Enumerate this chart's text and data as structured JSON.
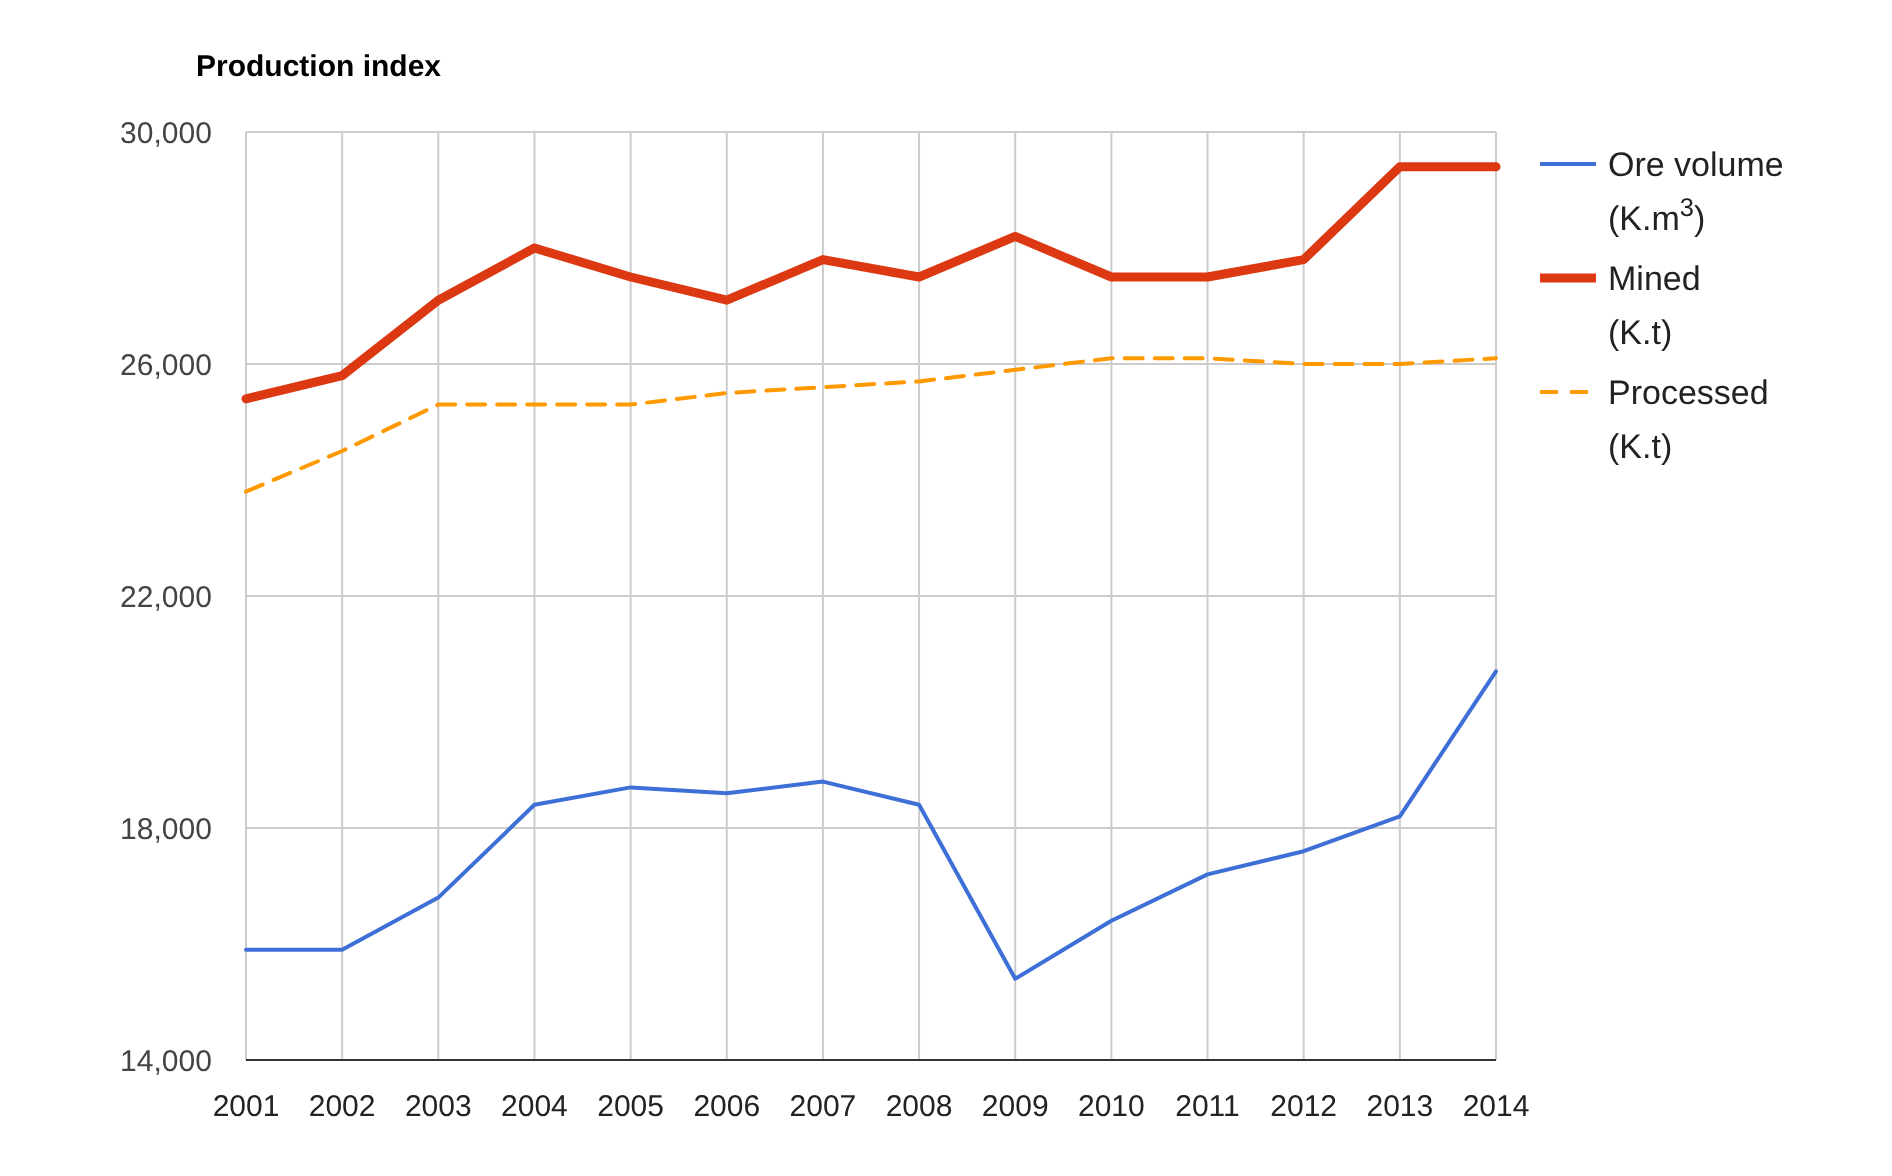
{
  "chart_data": {
    "type": "line",
    "title": "Production index",
    "x": [
      2001,
      2002,
      2003,
      2004,
      2005,
      2006,
      2007,
      2008,
      2009,
      2010,
      2011,
      2012,
      2013,
      2014
    ],
    "xlim": [
      2001,
      2014
    ],
    "xticks": [
      2001,
      2002,
      2003,
      2004,
      2005,
      2006,
      2007,
      2008,
      2009,
      2010,
      2011,
      2012,
      2013,
      2014
    ],
    "ylim": [
      14000,
      30000
    ],
    "yticks": [
      {
        "value": 14000,
        "label": "14,000"
      },
      {
        "value": 18000,
        "label": "18,000"
      },
      {
        "value": 22000,
        "label": "22,000"
      },
      {
        "value": 26000,
        "label": "26,000"
      },
      {
        "value": 30000,
        "label": "30,000"
      }
    ],
    "grid": true,
    "legend": "right",
    "series": [
      {
        "name": "Ore volume (K.m$^{3}$)",
        "color": "#3d6fd6",
        "line_style": "solid",
        "values": [
          15900,
          15900,
          16800,
          18400,
          18700,
          18600,
          18800,
          18400,
          15400,
          16400,
          17200,
          17600,
          18200,
          20700
        ]
      },
      {
        "name": "Mined (K.t)",
        "color": "#dc3912",
        "line_style": "solid",
        "values": [
          25400,
          25800,
          27100,
          28000,
          27500,
          27100,
          27800,
          27500,
          28200,
          27500,
          27500,
          27800,
          29400,
          29400
        ]
      },
      {
        "name": "Processed (K.t)",
        "color": "#ff9900",
        "line_style": "dashed",
        "values": [
          23800,
          24500,
          25300,
          25300,
          25300,
          25500,
          25600,
          25700,
          25900,
          26100,
          26100,
          26000,
          26000,
          26100
        ]
      }
    ]
  }
}
